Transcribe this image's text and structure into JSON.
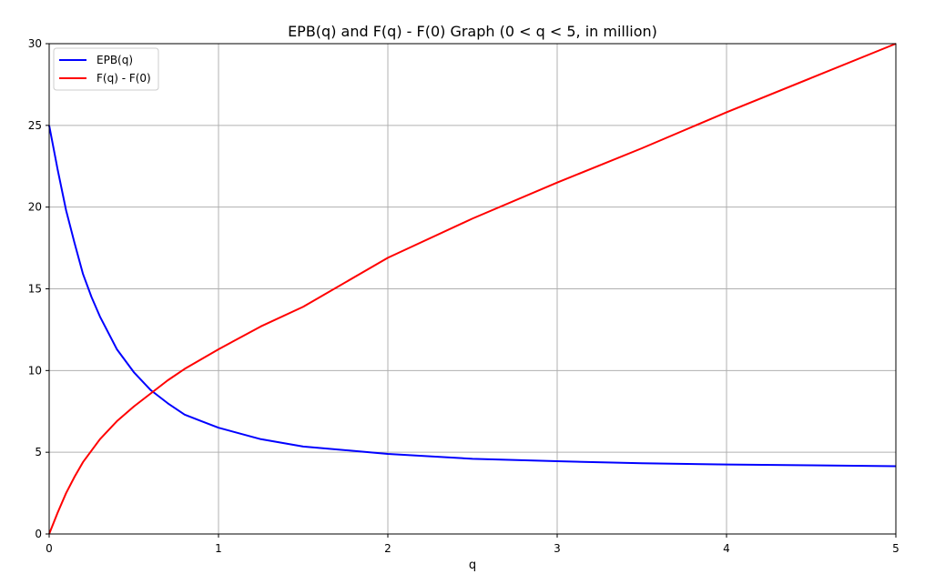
{
  "chart_data": {
    "type": "line",
    "title": "EPB(q) and F(q) - F(0) Graph (0 < q < 5, in million)",
    "xlabel": "q",
    "ylabel": "",
    "xlim": [
      0,
      5
    ],
    "ylim": [
      0,
      30
    ],
    "xticks": [
      0,
      1,
      2,
      3,
      4,
      5
    ],
    "yticks": [
      0,
      5,
      10,
      15,
      20,
      25,
      30
    ],
    "grid": true,
    "legend_position": "top-left",
    "series": [
      {
        "name": "EPB(q)",
        "color": "#0000ff",
        "x": [
          0,
          0.05,
          0.1,
          0.15,
          0.2,
          0.25,
          0.3,
          0.4,
          0.5,
          0.6,
          0.7,
          0.8,
          0.9,
          1.0,
          1.25,
          1.5,
          2.0,
          2.5,
          3.0,
          3.5,
          4.0,
          4.5,
          5.0
        ],
        "y": [
          25,
          22.3,
          19.8,
          17.8,
          15.9,
          14.5,
          13.3,
          11.3,
          9.9,
          8.8,
          8.0,
          7.3,
          6.9,
          6.5,
          5.8,
          5.35,
          4.9,
          4.6,
          4.45,
          4.33,
          4.25,
          4.2,
          4.15
        ]
      },
      {
        "name": "F(q) - F(0)",
        "color": "#ff0000",
        "x": [
          0,
          0.05,
          0.1,
          0.15,
          0.2,
          0.3,
          0.4,
          0.5,
          0.6,
          0.7,
          0.8,
          1.0,
          1.25,
          1.5,
          2.0,
          2.5,
          3.0,
          3.5,
          4.0,
          4.5,
          5.0
        ],
        "y": [
          0,
          1.3,
          2.5,
          3.5,
          4.4,
          5.8,
          6.9,
          7.8,
          8.6,
          9.4,
          10.1,
          11.3,
          12.7,
          13.9,
          16.9,
          19.3,
          21.5,
          23.6,
          25.8,
          27.9,
          30.0
        ]
      }
    ]
  }
}
